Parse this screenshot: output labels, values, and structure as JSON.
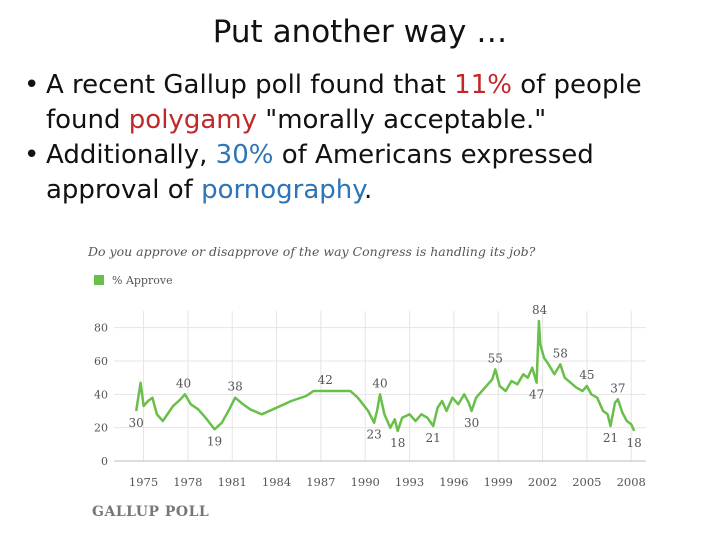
{
  "slide": {
    "title": "Put another way …",
    "bullet_symbol": "•",
    "bullet1": {
      "p1": "A recent Gallup poll found that ",
      "pct": "11%",
      "p2": " of people found ",
      "topic": "polygamy",
      "p3": " \"morally acceptable.\""
    },
    "bullet2": {
      "p1": "Additionally, ",
      "pct": "30%",
      "p2": " of Americans expressed approval of ",
      "topic": "pornography",
      "p3": "."
    },
    "logo_text": "GALLUP POLL"
  },
  "colors": {
    "highlight_red": "#c0282a",
    "highlight_blue": "#2e75b6",
    "series": "#6abf4b"
  },
  "chart_data": {
    "type": "line",
    "title": "Do you approve or disapprove of the way Congress is handling its job?",
    "legend": [
      "% Approve"
    ],
    "legend_position": "top-left",
    "grid": true,
    "xlim": [
      1973,
      2009
    ],
    "ylim": [
      0,
      90
    ],
    "y_ticks": [
      0,
      20,
      40,
      60,
      80
    ],
    "x_ticks": [
      1975,
      1978,
      1981,
      1984,
      1987,
      1990,
      1993,
      1996,
      1999,
      2002,
      2005,
      2008
    ],
    "annotations": [
      {
        "label": "30",
        "x": 1974.5,
        "y": 30,
        "pos": "below"
      },
      {
        "label": "40",
        "x": 1977.7,
        "y": 40,
        "pos": "above"
      },
      {
        "label": "19",
        "x": 1979.8,
        "y": 19,
        "pos": "below"
      },
      {
        "label": "38",
        "x": 1981.2,
        "y": 38,
        "pos": "above"
      },
      {
        "label": "42",
        "x": 1987.3,
        "y": 42,
        "pos": "above"
      },
      {
        "label": "40",
        "x": 1991.0,
        "y": 40,
        "pos": "above"
      },
      {
        "label": "23",
        "x": 1990.6,
        "y": 23,
        "pos": "below"
      },
      {
        "label": "18",
        "x": 1992.2,
        "y": 18,
        "pos": "below"
      },
      {
        "label": "21",
        "x": 1994.6,
        "y": 21,
        "pos": "below"
      },
      {
        "label": "30",
        "x": 1997.2,
        "y": 30,
        "pos": "below"
      },
      {
        "label": "55",
        "x": 1998.8,
        "y": 55,
        "pos": "above"
      },
      {
        "label": "84",
        "x": 2001.8,
        "y": 84,
        "pos": "above"
      },
      {
        "label": "47",
        "x": 2001.6,
        "y": 47,
        "pos": "below"
      },
      {
        "label": "58",
        "x": 2003.2,
        "y": 58,
        "pos": "above"
      },
      {
        "label": "45",
        "x": 2005.0,
        "y": 45,
        "pos": "above"
      },
      {
        "label": "37",
        "x": 2007.1,
        "y": 37,
        "pos": "above"
      },
      {
        "label": "21",
        "x": 2006.6,
        "y": 21,
        "pos": "below"
      },
      {
        "label": "18",
        "x": 2008.2,
        "y": 18,
        "pos": "below"
      }
    ],
    "series": [
      {
        "name": "% Approve",
        "x": [
          1974.5,
          1974.8,
          1975.0,
          1975.3,
          1975.6,
          1975.9,
          1976.3,
          1977.0,
          1977.5,
          1977.8,
          1978.2,
          1978.7,
          1979.2,
          1979.8,
          1980.3,
          1980.8,
          1981.2,
          1981.6,
          1982.2,
          1983.0,
          1984.0,
          1985.0,
          1986.0,
          1986.5,
          1987.3,
          1988.0,
          1989.0,
          1989.5,
          1990.2,
          1990.6,
          1990.8,
          1991.0,
          1991.3,
          1991.7,
          1992.0,
          1992.2,
          1992.5,
          1993.0,
          1993.4,
          1993.8,
          1994.2,
          1994.6,
          1994.9,
          1995.2,
          1995.5,
          1995.9,
          1996.3,
          1996.7,
          1997.0,
          1997.2,
          1997.5,
          1997.9,
          1998.3,
          1998.6,
          1998.8,
          1999.1,
          1999.5,
          1999.9,
          2000.3,
          2000.7,
          2001.0,
          2001.3,
          2001.6,
          2001.75,
          2001.85,
          2002.1,
          2002.4,
          2002.8,
          2003.2,
          2003.5,
          2003.9,
          2004.3,
          2004.7,
          2005.0,
          2005.3,
          2005.7,
          2006.1,
          2006.4,
          2006.6,
          2006.9,
          2007.1,
          2007.4,
          2007.7,
          2008.0,
          2008.2
        ],
        "values": [
          30,
          47,
          33,
          36,
          38,
          28,
          24,
          33,
          37,
          40,
          34,
          31,
          26,
          19,
          23,
          31,
          38,
          35,
          31,
          28,
          32,
          36,
          39,
          42,
          42,
          42,
          42,
          38,
          30,
          23,
          30,
          40,
          28,
          20,
          25,
          18,
          26,
          28,
          24,
          28,
          26,
          21,
          32,
          36,
          30,
          38,
          34,
          40,
          35,
          30,
          38,
          42,
          46,
          49,
          55,
          45,
          42,
          48,
          46,
          52,
          50,
          56,
          47,
          84,
          70,
          62,
          58,
          52,
          58,
          50,
          47,
          44,
          42,
          45,
          40,
          38,
          30,
          28,
          21,
          35,
          37,
          29,
          24,
          22,
          18
        ]
      }
    ]
  }
}
